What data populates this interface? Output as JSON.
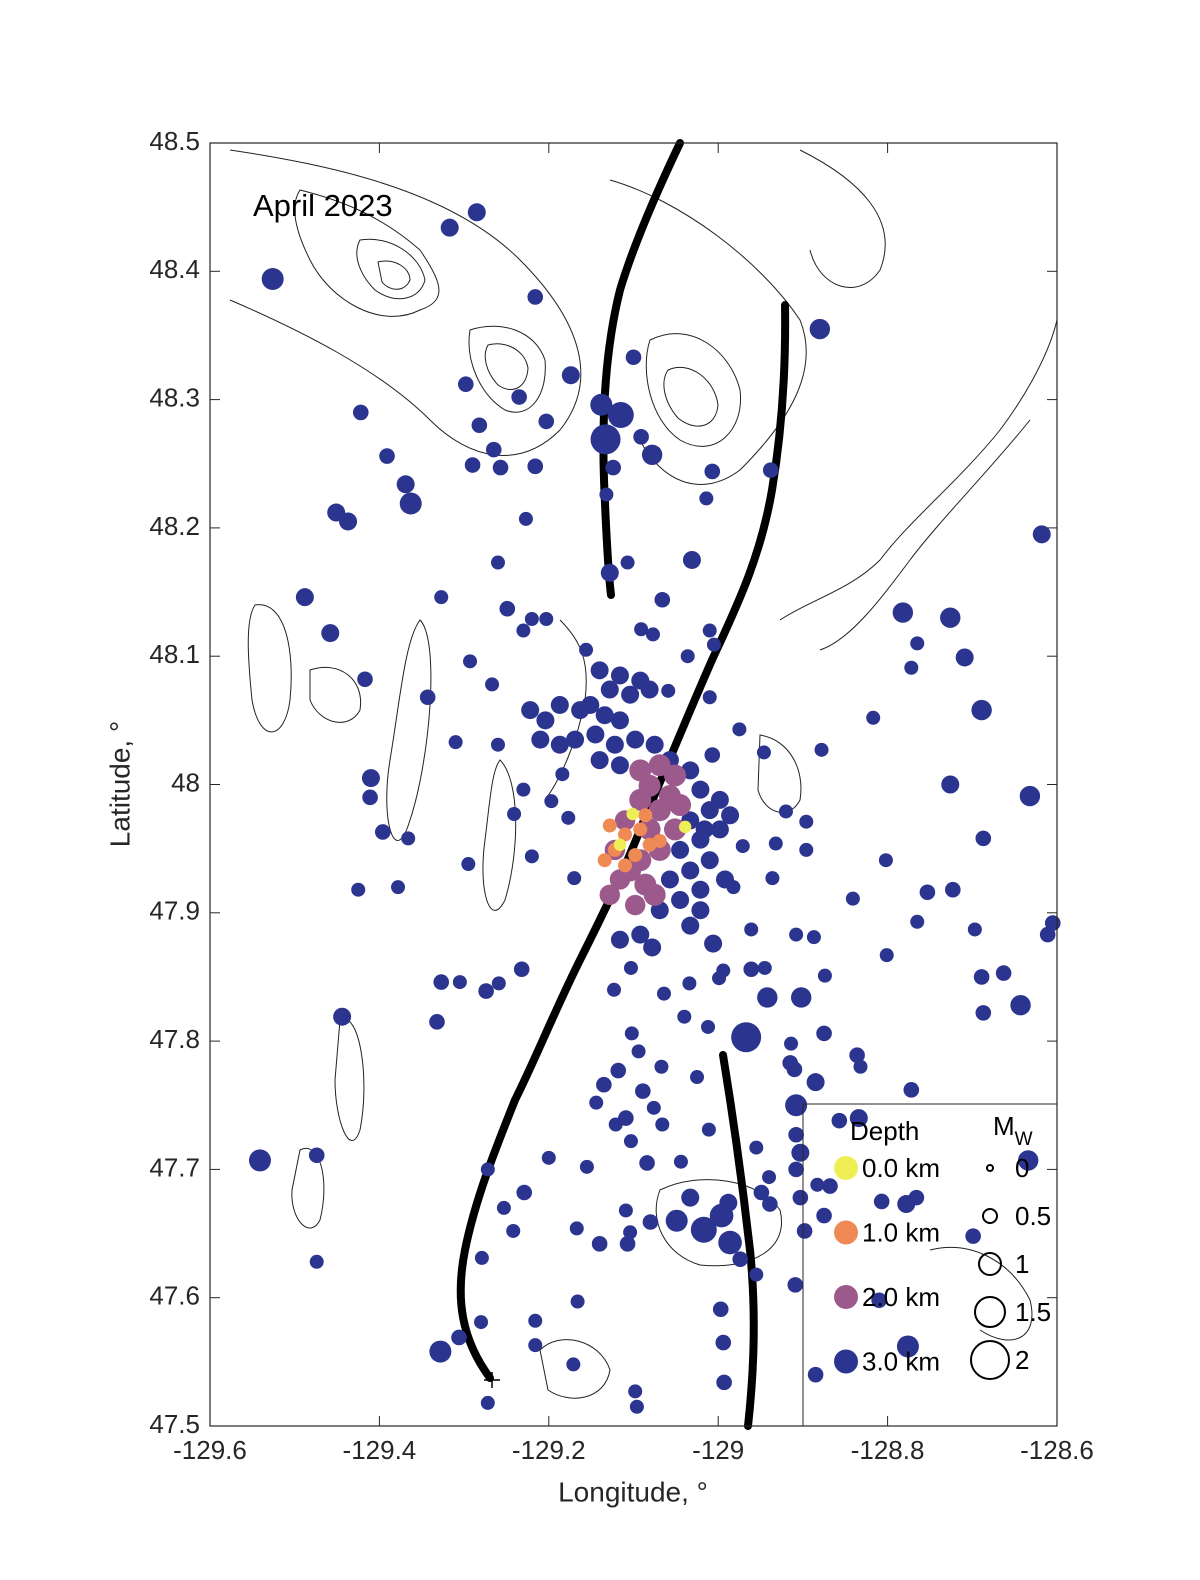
{
  "chart_data": {
    "type": "scatter",
    "title": "April 2023",
    "x_label": "Longitude, °",
    "y_label": "Latitude, °",
    "xlim": [
      -129.6,
      -128.6
    ],
    "ylim": [
      47.5,
      48.5
    ],
    "xticks": [
      -129.6,
      -129.4,
      -129.2,
      -129,
      -128.8,
      -128.6
    ],
    "yticks": [
      47.5,
      47.6,
      47.7,
      47.8,
      47.9,
      48,
      48.1,
      48.2,
      48.3,
      48.4,
      48.5
    ],
    "legend_position": "southeast",
    "legend_title": "Depth",
    "size_legend": {
      "title": "M",
      "title_subscript": "W",
      "values": [
        0,
        0.5,
        1,
        1.5,
        2
      ]
    },
    "series": [
      {
        "name": "0.0 km",
        "color": "#eeee55",
        "x": [
          -129.101,
          -129.039,
          -129.116
        ],
        "y": [
          47.977,
          47.967,
          47.953
        ],
        "size": [
          0.4,
          0.4,
          0.4
        ]
      },
      {
        "name": "1.0 km",
        "color": "#f08a55",
        "x": [
          -129.128,
          -129.11,
          -129.092,
          -129.122,
          -129.098,
          -129.081,
          -129.11,
          -129.086,
          -129.069,
          -129.134
        ],
        "y": [
          47.968,
          47.961,
          47.965,
          47.949,
          47.945,
          47.953,
          47.937,
          47.976,
          47.956,
          47.941
        ],
        "size": [
          0.5,
          0.5,
          0.5,
          0.5,
          0.5,
          0.5,
          0.5,
          0.5,
          0.5,
          0.5
        ]
      },
      {
        "name": "2.0 km",
        "color": "#9c5a8c",
        "x": [
          -129.092,
          -129.069,
          -129.051,
          -129.081,
          -129.057,
          -129.092,
          -129.069,
          -129.045,
          -129.11,
          -129.081,
          -129.122,
          -129.092,
          -129.069,
          -129.116,
          -129.086,
          -129.098,
          -129.075,
          -129.128,
          -129.104,
          -129.051
        ],
        "y": [
          48.011,
          48.015,
          48.007,
          47.999,
          47.991,
          47.988,
          47.98,
          47.984,
          47.972,
          47.965,
          47.949,
          47.941,
          47.949,
          47.926,
          47.922,
          47.906,
          47.914,
          47.914,
          47.933,
          47.965
        ],
        "size": [
          1,
          1,
          1,
          1,
          1,
          1,
          1,
          1,
          0.9,
          1,
          0.9,
          1,
          1,
          0.9,
          1,
          0.9,
          1,
          0.9,
          1,
          1
        ]
      },
      {
        "name": "3.0 km",
        "color": "#2b3590",
        "x": [
          -129.285,
          -129.317,
          -129.526,
          -129.216,
          -128.88,
          -129.1,
          -129.174,
          -129.298,
          -129.235,
          -129.422,
          -129.138,
          -129.115,
          -129.133,
          -129.203,
          -129.282,
          -129.091,
          -129.265,
          -129.391,
          -129.078,
          -129.29,
          -129.216,
          -129.257,
          -129.124,
          -129.007,
          -128.938,
          -129.369,
          -129.363,
          -129.132,
          -129.014,
          -129.451,
          -129.437,
          -129.227,
          -128.618,
          -129.107,
          -129.031,
          -129.26,
          -129.128,
          -129.488,
          -129.327,
          -129.066,
          -129.249,
          -128.782,
          -128.726,
          -129.22,
          -129.203,
          -129.23,
          -129.458,
          -129.091,
          -129.01,
          -129.077,
          -128.765,
          -129.156,
          -129.005,
          -128.709,
          -129.293,
          -129.036,
          -128.772,
          -129.417,
          -129.267,
          -129.059,
          -129.343,
          -129.01,
          -128.689,
          -128.817,
          -128.975,
          -129.31,
          -129.26,
          -128.878,
          -128.946,
          -129.007,
          -129.41,
          -128.726,
          -128.632,
          -129.411,
          -129.184,
          -129.23,
          -129.197,
          -128.92,
          -129.241,
          -129.177,
          -128.896,
          -129.396,
          -128.687,
          -129.366,
          -128.971,
          -128.932,
          -128.896,
          -129.22,
          -129.295,
          -128.802,
          -129.17,
          -128.936,
          -129.425,
          -129.378,
          -128.723,
          -128.753,
          -128.841,
          -128.982,
          -128.605,
          -128.765,
          -128.611,
          -128.697,
          -128.961,
          -128.887,
          -128.908,
          -129.006,
          -129.078,
          -128.801,
          -128.994,
          -128.961,
          -128.945,
          -129.232,
          -129.103,
          -128.663,
          -128.689,
          -128.874,
          -129.327,
          -129.305,
          -129.259,
          -129.034,
          -128.999,
          -129.123,
          -129.274,
          -129.064,
          -128.942,
          -128.902,
          -128.643,
          -129.444,
          -128.687,
          -129.04,
          -129.012,
          -129.332,
          -128.967,
          -128.875,
          -129.102,
          -129.094,
          -128.914,
          -128.836,
          -128.915,
          -128.832,
          -129.067,
          -129.118,
          -128.91,
          -129.025,
          -128.885,
          -129.135,
          -128.772,
          -129.089,
          -128.908,
          -129.076,
          -129.144,
          -129.109,
          -128.834,
          -129.121,
          -129.066,
          -129.011,
          -128.857,
          -128.908,
          -129.103,
          -128.955,
          -129.2,
          -129.541,
          -129.474,
          -128.903,
          -128.634,
          -129.044,
          -129.084,
          -129.155,
          -128.908,
          -129.272,
          -128.883,
          -128.94,
          -129.229,
          -128.868,
          -128.949,
          -128.766,
          -128.807,
          -128.778,
          -128.903,
          -128.939,
          -129.253,
          -129.033,
          -128.988,
          -129.109,
          -128.875,
          -128.898,
          -129.049,
          -129.017,
          -128.996,
          -128.986,
          -129.242,
          -129.167,
          -129.104,
          -128.699,
          -129.14,
          -129.107,
          -129.08,
          -128.974,
          -129.279,
          -129.474,
          -128.955,
          -128.909,
          -129.166,
          -128.81,
          -128.997,
          -129.28,
          -129.216,
          -129.306,
          -128.994,
          -128.776,
          -129.328,
          -129.216,
          -129.171,
          -128.885,
          -128.993,
          -129.098,
          -129.272,
          -129.096,
          -129.14,
          -129.116,
          -129.092,
          -129.128,
          -129.104,
          -129.081,
          -129.151,
          -129.134,
          -129.116,
          -129.163,
          -129.187,
          -129.204,
          -129.222,
          -129.21,
          -129.187,
          -129.169,
          -129.145,
          -129.122,
          -129.098,
          -129.075,
          -129.14,
          -129.116,
          -129.057,
          -129.033,
          -129.021,
          -129.01,
          -129.033,
          -128.998,
          -129.021,
          -129.045,
          -129.01,
          -129.033,
          -129.057,
          -129.021,
          -129.045,
          -129.069,
          -128.998,
          -128.986,
          -129.016,
          -129.033,
          -129.092,
          -129.116,
          -129.021,
          -128.992
        ],
        "y": [
          48.446,
          48.434,
          48.394,
          48.38,
          48.355,
          48.333,
          48.319,
          48.312,
          48.302,
          48.29,
          48.296,
          48.288,
          48.269,
          48.283,
          48.28,
          48.271,
          48.261,
          48.256,
          48.257,
          48.249,
          48.248,
          48.247,
          48.247,
          48.244,
          48.245,
          48.234,
          48.219,
          48.226,
          48.223,
          48.212,
          48.205,
          48.207,
          48.195,
          48.173,
          48.175,
          48.173,
          48.165,
          48.146,
          48.146,
          48.144,
          48.137,
          48.134,
          48.13,
          48.129,
          48.129,
          48.12,
          48.118,
          48.121,
          48.12,
          48.117,
          48.11,
          48.105,
          48.109,
          48.099,
          48.096,
          48.1,
          48.091,
          48.082,
          48.078,
          48.073,
          48.068,
          48.068,
          48.058,
          48.052,
          48.043,
          48.033,
          48.031,
          48.027,
          48.025,
          48.023,
          48.005,
          48.0,
          47.991,
          47.99,
          48.008,
          47.996,
          47.987,
          47.979,
          47.977,
          47.974,
          47.971,
          47.963,
          47.958,
          47.958,
          47.952,
          47.954,
          47.949,
          47.944,
          47.938,
          47.941,
          47.927,
          47.927,
          47.918,
          47.92,
          47.918,
          47.916,
          47.911,
          47.92,
          47.892,
          47.893,
          47.883,
          47.887,
          47.887,
          47.881,
          47.883,
          47.876,
          47.873,
          47.867,
          47.855,
          47.856,
          47.857,
          47.856,
          47.857,
          47.853,
          47.85,
          47.851,
          47.846,
          47.846,
          47.845,
          47.845,
          47.849,
          47.84,
          47.839,
          47.837,
          47.834,
          47.834,
          47.828,
          47.819,
          47.822,
          47.819,
          47.811,
          47.815,
          47.803,
          47.806,
          47.806,
          47.792,
          47.798,
          47.789,
          47.783,
          47.78,
          47.78,
          47.777,
          47.778,
          47.772,
          47.768,
          47.766,
          47.762,
          47.761,
          47.75,
          47.748,
          47.752,
          47.74,
          47.74,
          47.735,
          47.735,
          47.731,
          47.738,
          47.727,
          47.722,
          47.717,
          47.709,
          47.707,
          47.711,
          47.713,
          47.707,
          47.706,
          47.705,
          47.702,
          47.7,
          47.7,
          47.688,
          47.694,
          47.682,
          47.687,
          47.682,
          47.678,
          47.675,
          47.673,
          47.678,
          47.673,
          47.67,
          47.678,
          47.674,
          47.668,
          47.664,
          47.652,
          47.66,
          47.653,
          47.664,
          47.643,
          47.652,
          47.654,
          47.651,
          47.648,
          47.642,
          47.642,
          47.659,
          47.63,
          47.631,
          47.628,
          47.618,
          47.61,
          47.597,
          47.598,
          47.591,
          47.581,
          47.582,
          47.569,
          47.565,
          47.562,
          47.558,
          47.563,
          47.548,
          47.54,
          47.534,
          47.527,
          47.518,
          47.515,
          48.089,
          48.085,
          48.081,
          48.074,
          48.07,
          48.074,
          48.062,
          48.054,
          48.05,
          48.058,
          48.062,
          48.05,
          48.058,
          48.035,
          48.031,
          48.035,
          48.039,
          48.031,
          48.035,
          48.031,
          48.019,
          48.015,
          48.019,
          48.011,
          47.996,
          47.98,
          47.972,
          47.965,
          47.957,
          47.949,
          47.941,
          47.933,
          47.926,
          47.918,
          47.91,
          47.902,
          47.988,
          47.976,
          47.965,
          47.89,
          47.883,
          47.879,
          47.902,
          47.926
        ],
        "size": [
          0.75,
          0.75,
          1,
          0.6,
          0.9,
          0.6,
          0.75,
          0.6,
          0.6,
          0.6,
          1,
          1.25,
          1.5,
          0.6,
          0.6,
          0.6,
          0.6,
          0.6,
          0.9,
          0.6,
          0.6,
          0.6,
          0.6,
          0.6,
          0.6,
          0.75,
          1,
          0.5,
          0.5,
          0.75,
          0.75,
          0.5,
          0.75,
          0.5,
          0.75,
          0.5,
          0.75,
          0.75,
          0.5,
          0.6,
          0.6,
          0.9,
          0.9,
          0.5,
          0.5,
          0.5,
          0.75,
          0.5,
          0.5,
          0.5,
          0.5,
          0.5,
          0.5,
          0.75,
          0.5,
          0.5,
          0.5,
          0.6,
          0.5,
          0.5,
          0.6,
          0.5,
          0.9,
          0.5,
          0.5,
          0.5,
          0.5,
          0.5,
          0.5,
          0.6,
          0.75,
          0.75,
          0.9,
          0.6,
          0.5,
          0.5,
          0.5,
          0.5,
          0.5,
          0.5,
          0.5,
          0.6,
          0.6,
          0.5,
          0.5,
          0.5,
          0.5,
          0.5,
          0.5,
          0.5,
          0.5,
          0.5,
          0.5,
          0.5,
          0.6,
          0.6,
          0.5,
          0.5,
          0.6,
          0.5,
          0.6,
          0.5,
          0.5,
          0.5,
          0.5,
          0.75,
          0.75,
          0.5,
          0.5,
          0.6,
          0.5,
          0.6,
          0.5,
          0.6,
          0.6,
          0.5,
          0.6,
          0.5,
          0.5,
          0.5,
          0.5,
          0.5,
          0.6,
          0.5,
          0.9,
          0.9,
          0.9,
          0.75,
          0.6,
          0.5,
          0.5,
          0.6,
          1.5,
          0.6,
          0.5,
          0.5,
          0.5,
          0.6,
          0.6,
          0.5,
          0.5,
          0.6,
          0.6,
          0.5,
          0.75,
          0.6,
          0.6,
          0.6,
          1,
          0.5,
          0.5,
          0.6,
          0.75,
          0.5,
          0.5,
          0.5,
          0.6,
          0.6,
          0.5,
          0.5,
          0.5,
          1,
          0.6,
          0.75,
          0.9,
          0.5,
          0.6,
          0.5,
          0.6,
          0.5,
          0.5,
          0.5,
          0.6,
          0.6,
          0.6,
          0.6,
          0.6,
          0.75,
          0.6,
          0.6,
          0.5,
          0.75,
          0.75,
          0.5,
          0.6,
          0.6,
          1,
          1.25,
          1.1,
          1.1,
          0.5,
          0.5,
          0.5,
          0.6,
          0.6,
          0.6,
          0.6,
          0.6,
          0.5,
          0.5,
          0.5,
          0.6,
          0.5,
          0.6,
          0.6,
          0.5,
          0.5,
          0.6,
          0.6,
          1,
          1,
          0.5,
          0.5,
          0.6,
          0.6,
          0.5,
          0.5,
          0.5,
          0.75,
          0.75,
          0.75,
          0.75,
          0.75,
          0.75,
          0.75,
          0.75,
          0.75,
          0.75,
          0.75,
          0.75,
          0.75,
          0.75,
          0.75,
          0.75,
          0.75,
          0.75,
          0.75,
          0.75,
          0.75,
          0.75,
          0.75,
          0.75,
          0.75,
          0.75,
          0.75,
          0.75,
          0.75,
          0.75,
          0.75,
          0.75,
          0.75,
          0.75,
          0.75,
          0.75,
          0.75,
          0.75,
          0.75,
          0.75,
          0.75,
          0.75,
          0.75,
          0.75
        ]
      }
    ]
  }
}
